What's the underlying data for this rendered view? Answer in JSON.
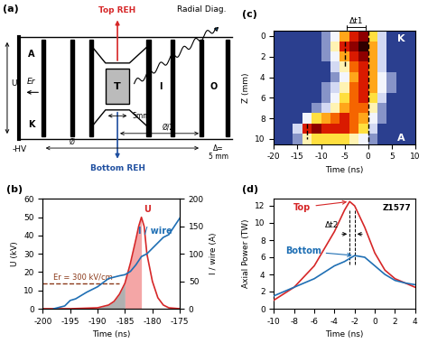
{
  "diagram": {
    "panel": "(a)",
    "top": "Top REH",
    "bottom": "Bottom REH",
    "radial": "Radial Diag.",
    "anode": "A",
    "cathode": "K",
    "target": "T",
    "inner": "I",
    "outer": "O",
    "field": "Er",
    "voltage": "U",
    "hv": "-HV",
    "gap": "5mm",
    "half": "Ø/2",
    "diameter": "Ø",
    "delta": "Δ=",
    "delta_value": "5 mm",
    "top_color": "#d62728",
    "bottom_color": "#1f4fa0"
  },
  "chart_data": [
    {
      "type": "line",
      "panel": "(b)",
      "xlabel": "Time (ns)",
      "ylabel": "U (kV)",
      "y2label": "I / wire (A)",
      "xlim": [
        -200,
        -175
      ],
      "xticks": [
        -200,
        -195,
        -190,
        -185,
        -180,
        -175
      ],
      "ylim": [
        0,
        60
      ],
      "yticks": [
        0,
        10,
        20,
        30,
        40,
        50,
        60
      ],
      "y2lim": [
        0,
        200
      ],
      "y2ticks": [
        0,
        50,
        100,
        150,
        200
      ],
      "series": [
        {
          "name": "U",
          "color": "#d62728",
          "x": [
            -200,
            -195,
            -190,
            -188,
            -187,
            -186,
            -185,
            -184,
            -183,
            -182.5,
            -182,
            -181.5,
            -181,
            -180,
            -179,
            -178,
            -177,
            -175
          ],
          "values": [
            0,
            0,
            0.5,
            2,
            4,
            8,
            14,
            25,
            38,
            45,
            50,
            45,
            30,
            15,
            6,
            2,
            0.5,
            0
          ]
        },
        {
          "name": "I / wire",
          "color": "#1f6fb4",
          "axis": "y2",
          "x": [
            -198,
            -196,
            -195,
            -194,
            -192,
            -190,
            -188,
            -186,
            -185,
            -184,
            -183,
            -182,
            -181,
            -180,
            -178,
            -177,
            -176,
            -175
          ],
          "values": [
            0,
            5,
            15,
            18,
            30,
            40,
            55,
            60,
            62,
            68,
            80,
            95,
            100,
            110,
            130,
            135,
            150,
            165
          ]
        }
      ],
      "threshold": {
        "label": "Er = 300 kV/cm",
        "value": 14,
        "x": [
          -200,
          -186
        ]
      },
      "shading": [
        {
          "from": -190,
          "to": -185,
          "color": "#b0b0b0"
        },
        {
          "from": -185,
          "to": -182,
          "color": "#f4a6a6"
        }
      ]
    },
    {
      "type": "heatmap",
      "panel": "(c)",
      "xlabel": "Time (ns)",
      "ylabel": "Z (mm)",
      "xlim": [
        -20,
        10
      ],
      "xticks": [
        -20,
        -15,
        -10,
        -5,
        0,
        5,
        10
      ],
      "ylim": [
        10.5,
        -0.5
      ],
      "yticks": [
        0,
        2,
        4,
        6,
        8,
        10
      ],
      "x_edges": [
        -20,
        -18,
        -16,
        -14,
        -12,
        -10,
        -8,
        -6,
        -4,
        -2,
        0,
        2,
        4,
        6,
        8,
        10
      ],
      "y_edges": [
        -0.5,
        0.5,
        1.5,
        2.5,
        3.5,
        4.5,
        5.5,
        6.5,
        7.5,
        8.5,
        9.5,
        10.5
      ],
      "cells": [
        [
          0,
          0,
          0,
          0,
          0,
          0.1,
          0.3,
          0.6,
          0.8,
          0.9,
          0.5,
          0.2,
          0,
          0,
          0
        ],
        [
          0,
          0,
          0,
          0,
          0,
          0.1,
          0.4,
          0.8,
          0.9,
          1.0,
          0.6,
          0.2,
          0,
          0,
          0
        ],
        [
          0,
          0,
          0,
          0,
          0,
          0.1,
          0.3,
          0.6,
          0.8,
          0.9,
          0.6,
          0.2,
          0,
          0,
          0
        ],
        [
          0,
          0,
          0,
          0,
          0,
          0,
          0.2,
          0.4,
          0.7,
          0.8,
          0.6,
          0.2,
          0,
          0,
          0
        ],
        [
          0,
          0,
          0,
          0,
          0,
          0,
          0.1,
          0.3,
          0.6,
          0.8,
          0.6,
          0.3,
          0.1,
          0,
          0
        ],
        [
          0,
          0,
          0,
          0,
          0,
          0.1,
          0.2,
          0.4,
          0.7,
          0.8,
          0.6,
          0.3,
          0.1,
          0,
          0
        ],
        [
          0,
          0,
          0,
          0,
          0,
          0.1,
          0.3,
          0.5,
          0.7,
          0.8,
          0.5,
          0.2,
          0,
          0,
          0
        ],
        [
          0,
          0,
          0,
          0,
          0.1,
          0.2,
          0.4,
          0.6,
          0.7,
          0.7,
          0.4,
          0.1,
          0,
          0,
          0
        ],
        [
          0,
          0,
          0,
          0.3,
          0.5,
          0.6,
          0.7,
          0.8,
          0.7,
          0.6,
          0.3,
          0.1,
          0,
          0,
          0
        ],
        [
          0,
          0,
          0.2,
          0.8,
          0.9,
          0.8,
          0.8,
          0.8,
          0.7,
          0.5,
          0.2,
          0,
          0,
          0,
          0
        ],
        [
          0,
          0,
          0.1,
          0.4,
          0.5,
          0.5,
          0.5,
          0.5,
          0.4,
          0.3,
          0.1,
          0,
          0,
          0,
          0
        ]
      ],
      "anode": "A",
      "cathode": "K",
      "delta_label": "Δt1",
      "delta_x": [
        -5,
        0
      ],
      "markers": [
        {
          "x": -5,
          "z": [
            0.5,
            3
          ]
        },
        {
          "x": 0,
          "z": [
            -0.5,
            10.5
          ]
        },
        {
          "x": -13,
          "z": [
            8.5,
            10
          ]
        }
      ]
    },
    {
      "type": "line",
      "panel": "(d)",
      "xlabel": "Time (ns)",
      "ylabel": "Axial Power (TW)",
      "xlim": [
        -10,
        4
      ],
      "xticks": [
        -10,
        -8,
        -6,
        -4,
        -2,
        0,
        2,
        4
      ],
      "ylim": [
        0,
        12.8
      ],
      "yticks": [
        0,
        2,
        4,
        6,
        8,
        10,
        12
      ],
      "annotation": "Z1577",
      "series": [
        {
          "name": "Top",
          "color": "#d62728",
          "x": [
            -10,
            -8,
            -6,
            -5,
            -4,
            -3,
            -2.5,
            -2,
            -1,
            0,
            1,
            2,
            3,
            4
          ],
          "values": [
            1,
            2.5,
            5,
            7,
            9,
            11.5,
            12.5,
            12,
            9.5,
            6.5,
            4.5,
            3.5,
            3,
            2.5
          ]
        },
        {
          "name": "Bottom",
          "color": "#1f6fb4",
          "x": [
            -10,
            -8,
            -6,
            -4,
            -3,
            -2,
            -1,
            0,
            1,
            2,
            3,
            4
          ],
          "values": [
            1.5,
            2.5,
            3.5,
            5,
            5.5,
            6.2,
            6,
            5,
            4,
            3.3,
            3,
            2.8
          ]
        }
      ],
      "delta_label": "Δt2",
      "delta_x": [
        -2.5,
        -2
      ]
    }
  ]
}
